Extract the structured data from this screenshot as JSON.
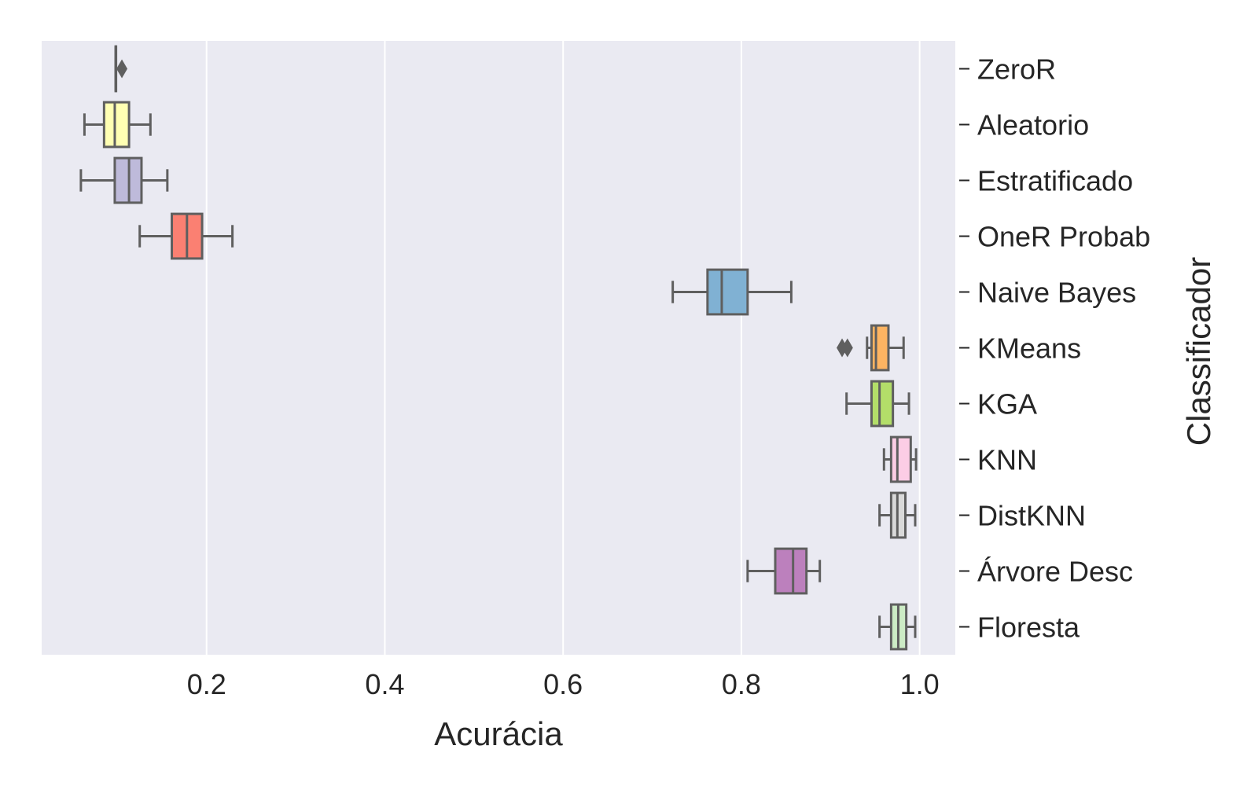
{
  "chart_data": {
    "type": "boxplot",
    "orientation": "horizontal",
    "xlabel": "Acurácia",
    "ylabel": "Classificador",
    "y_axis_position": "right",
    "xlim": [
      0.015,
      1.04
    ],
    "xticks": [
      0.2,
      0.4,
      0.6,
      0.8,
      1.0
    ],
    "xtick_labels": [
      "0.2",
      "0.4",
      "0.6",
      "0.8",
      "1.0"
    ],
    "grid": true,
    "background": "#eaeaf2",
    "edge_color": "#5f5f5f",
    "categories": [
      "ZeroR",
      "Aleatorio",
      "Estratificado",
      "OneR Probab",
      "Naive Bayes",
      "KMeans",
      "KGA",
      "KNN",
      "DistKNN",
      "Árvore Desc",
      "Floresta"
    ],
    "boxes": [
      {
        "name": "ZeroR",
        "color": "#8dd3c7",
        "whislo": 0.098,
        "q1": 0.098,
        "med": 0.098,
        "q3": 0.098,
        "whishi": 0.098,
        "fliers": [
          0.105
        ]
      },
      {
        "name": "Aleatorio",
        "color": "#ffffb3",
        "whislo": 0.063,
        "q1": 0.085,
        "med": 0.097,
        "q3": 0.113,
        "whishi": 0.137,
        "fliers": []
      },
      {
        "name": "Estratificado",
        "color": "#bebada",
        "whislo": 0.059,
        "q1": 0.097,
        "med": 0.113,
        "q3": 0.127,
        "whishi": 0.156,
        "fliers": []
      },
      {
        "name": "OneR Probab",
        "color": "#fb8072",
        "whislo": 0.125,
        "q1": 0.161,
        "med": 0.178,
        "q3": 0.195,
        "whishi": 0.229,
        "fliers": []
      },
      {
        "name": "Naive Bayes",
        "color": "#80b1d3",
        "whislo": 0.723,
        "q1": 0.762,
        "med": 0.778,
        "q3": 0.807,
        "whishi": 0.856,
        "fliers": []
      },
      {
        "name": "KMeans",
        "color": "#fdb462",
        "whislo": 0.941,
        "q1": 0.946,
        "med": 0.951,
        "q3": 0.965,
        "whishi": 0.982,
        "fliers": [
          0.913,
          0.919
        ]
      },
      {
        "name": "KGA",
        "color": "#b3de69",
        "whislo": 0.918,
        "q1": 0.946,
        "med": 0.955,
        "q3": 0.97,
        "whishi": 0.988,
        "fliers": []
      },
      {
        "name": "KNN",
        "color": "#fccde5",
        "whislo": 0.96,
        "q1": 0.968,
        "med": 0.975,
        "q3": 0.99,
        "whishi": 0.996,
        "fliers": []
      },
      {
        "name": "DistKNN",
        "color": "#d9d9d9",
        "whislo": 0.955,
        "q1": 0.968,
        "med": 0.975,
        "q3": 0.984,
        "whishi": 0.995,
        "fliers": []
      },
      {
        "name": "Árvore Desc",
        "color": "#bc80bd",
        "whislo": 0.807,
        "q1": 0.838,
        "med": 0.858,
        "q3": 0.873,
        "whishi": 0.888,
        "fliers": []
      },
      {
        "name": "Floresta",
        "color": "#ccebc5",
        "whislo": 0.955,
        "q1": 0.968,
        "med": 0.976,
        "q3": 0.985,
        "whishi": 0.995,
        "fliers": []
      }
    ]
  }
}
